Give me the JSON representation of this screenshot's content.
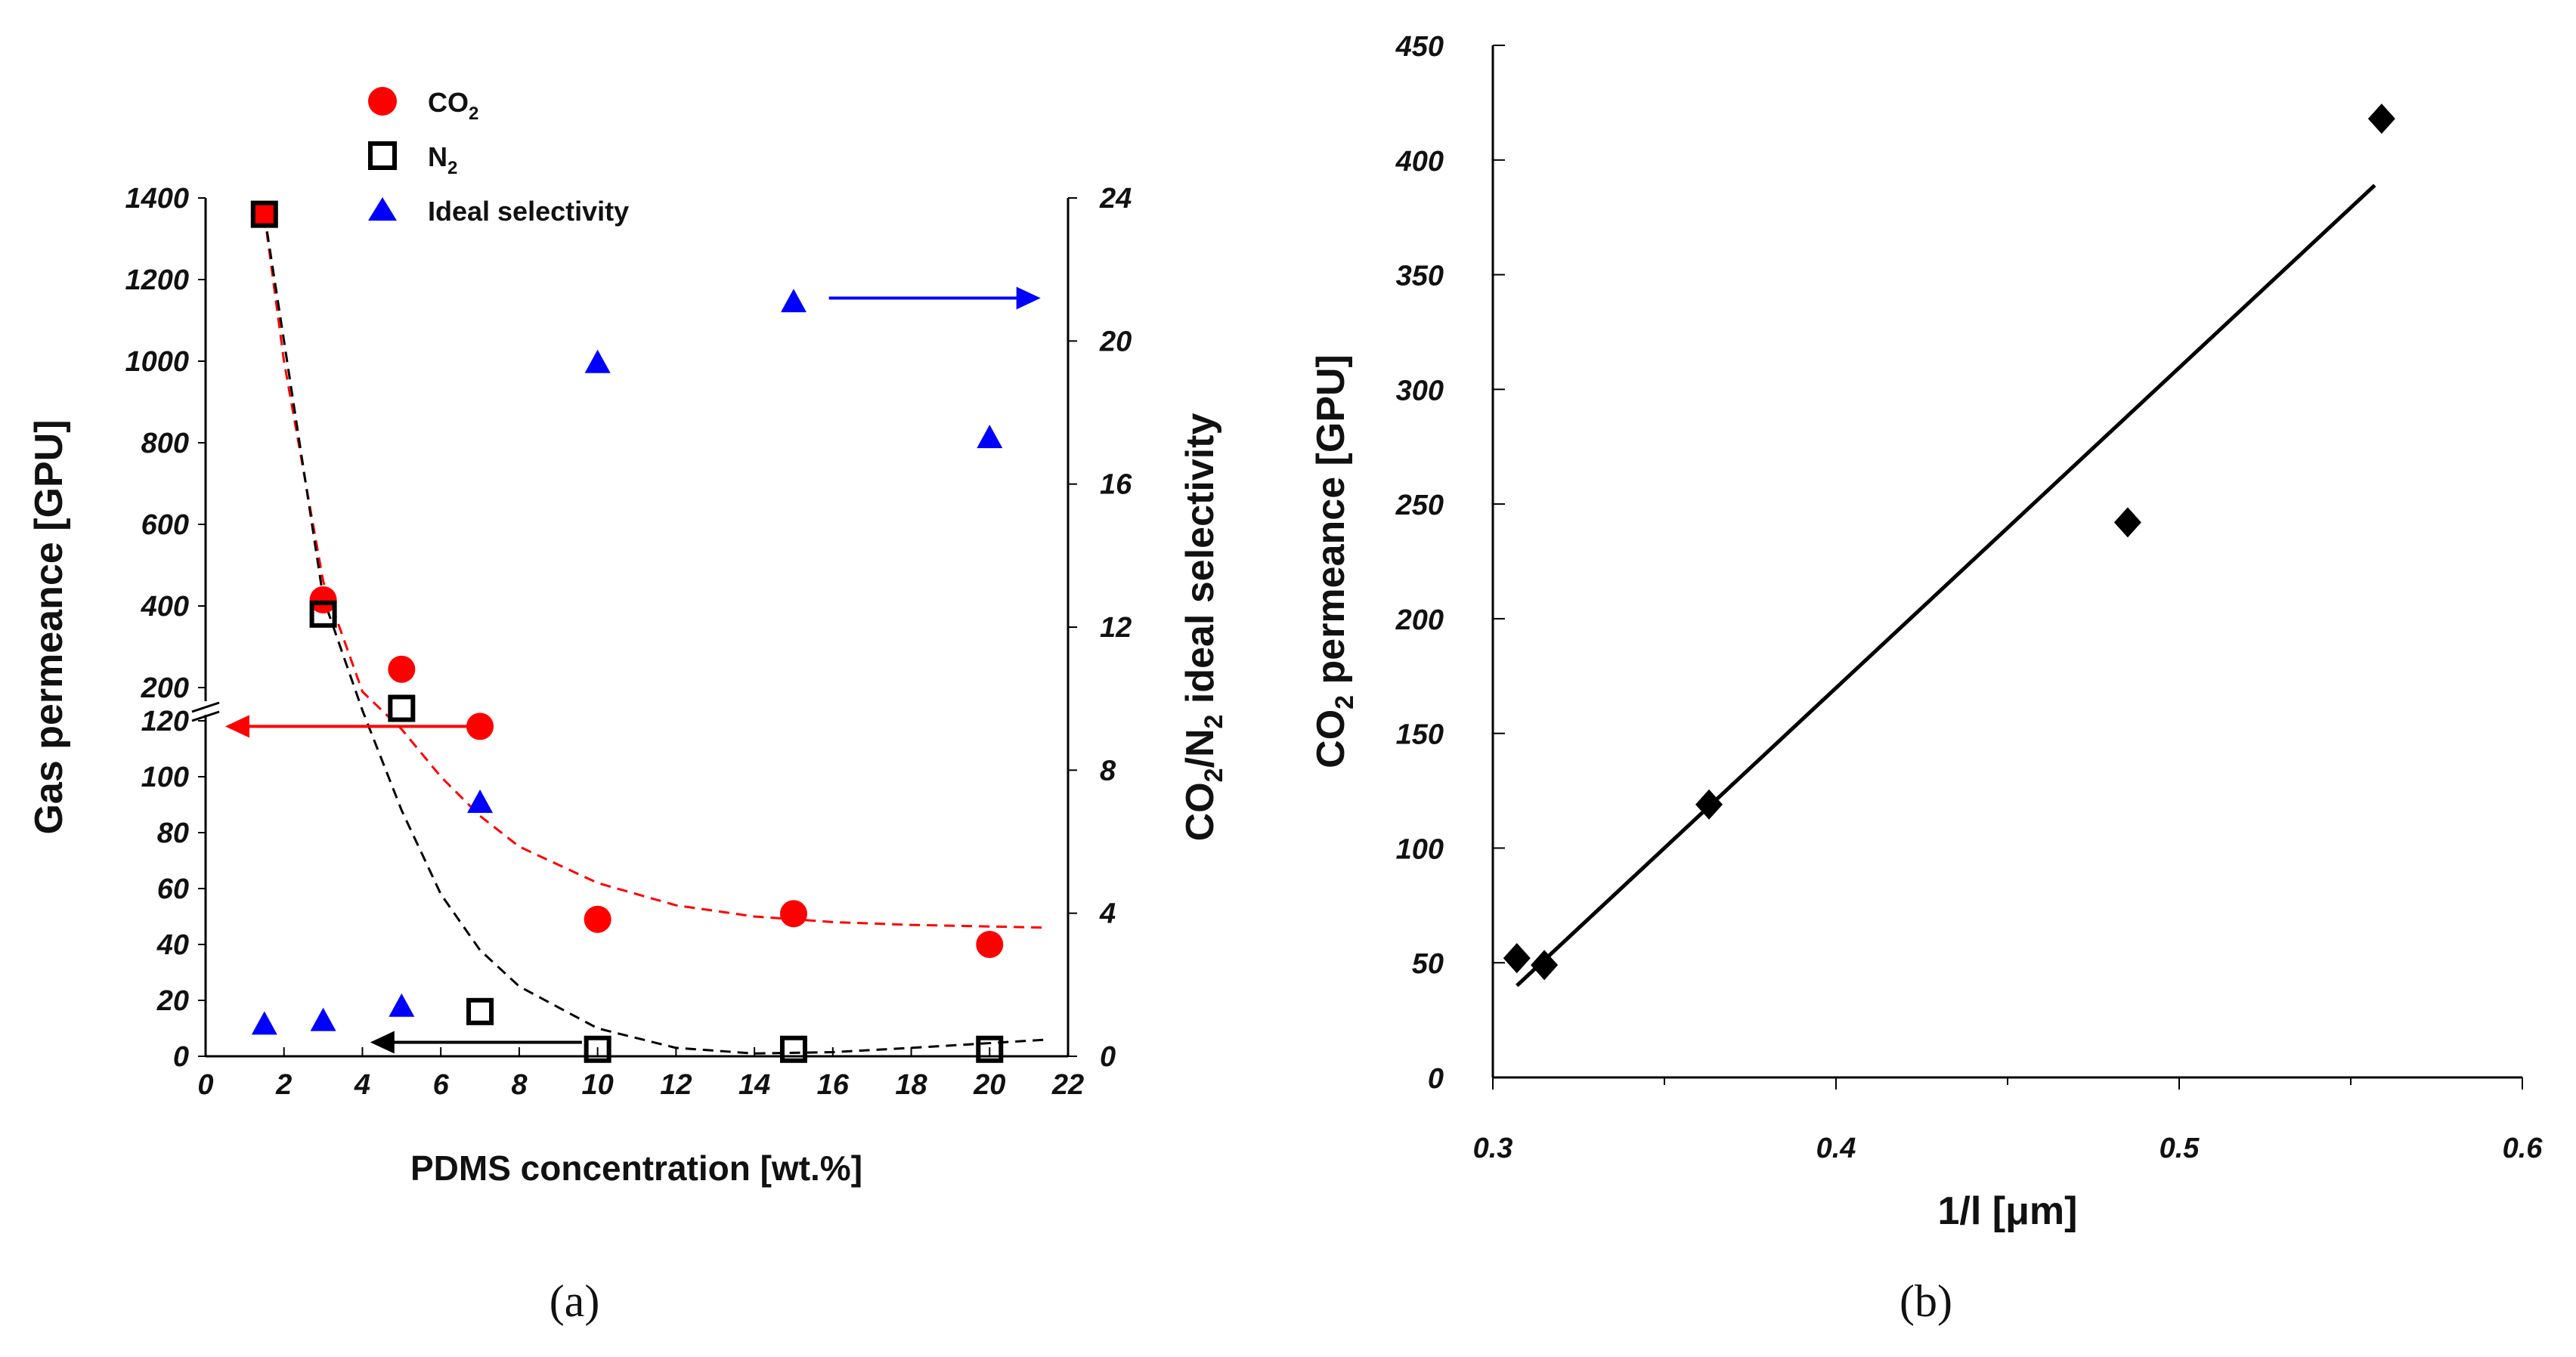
{
  "chart_data": [
    {
      "panel": "(a)",
      "type": "scatter",
      "xlabel": "PDMS concentration [wt.%]",
      "ylabel": "Gas permeance [GPU]",
      "y2label": "CO2/N2 ideal selectivity",
      "xlim": [
        0,
        22
      ],
      "xticks": [
        "0",
        "2",
        "4",
        "6",
        "8",
        "10",
        "12",
        "14",
        "16",
        "18",
        "20",
        "22"
      ],
      "ylim_lower": [
        0,
        120
      ],
      "yticks_lower": [
        "0",
        "20",
        "40",
        "60",
        "80",
        "100",
        "120"
      ],
      "ylim_upper": [
        200,
        1400
      ],
      "yticks_upper": [
        "200",
        "400",
        "600",
        "800",
        "1000",
        "1200",
        "1400"
      ],
      "y2lim": [
        0,
        24
      ],
      "y2ticks": [
        "0",
        "4",
        "8",
        "12",
        "16",
        "20",
        "24"
      ],
      "legend": [
        "CO2",
        "N2",
        "Ideal selectivity"
      ],
      "series": [
        {
          "name": "CO2",
          "marker": "circle",
          "color": "#ff0000",
          "axis": "left",
          "x": [
            1.5,
            3,
            5,
            7,
            10,
            15,
            20
          ],
          "y": [
            1360,
            415,
            245,
            118,
            49,
            51,
            40
          ]
        },
        {
          "name": "N2",
          "marker": "open-square",
          "color": "#000000",
          "axis": "left",
          "x": [
            1.5,
            3,
            5,
            7,
            10,
            15,
            20
          ],
          "y": [
            1360,
            380,
            150,
            16,
            2.5,
            2.5,
            2.5
          ]
        },
        {
          "name": "Ideal selectivity",
          "marker": "triangle",
          "color": "#0000ff",
          "axis": "right",
          "x": [
            1.5,
            3,
            5,
            7,
            10,
            15,
            20
          ],
          "y": [
            0.9,
            1.0,
            1.4,
            7.1,
            19.4,
            21.1,
            17.3
          ]
        }
      ],
      "fits": [
        {
          "name": "CO2 fit",
          "style": "dashed",
          "color": "#ff0000",
          "x": [
            1.5,
            2,
            3,
            4,
            5,
            6,
            7,
            8,
            10,
            12,
            14,
            16,
            18,
            21.5
          ],
          "y": [
            1360,
            1000,
            460,
            190,
            117,
            100,
            86,
            75,
            62,
            54,
            50,
            48,
            47,
            46
          ]
        },
        {
          "name": "N2 fit",
          "style": "dashed",
          "color": "#000000",
          "x": [
            1.5,
            2,
            3,
            4,
            5,
            6,
            7,
            8,
            10,
            12,
            14,
            16,
            18,
            21.5
          ],
          "y": [
            1360,
            1050,
            420,
            145,
            88,
            58,
            38,
            25,
            10,
            3,
            1,
            1.5,
            3,
            6
          ]
        }
      ],
      "arrows": [
        {
          "color": "#ff0000",
          "from": [
            6.7,
            118
          ],
          "to": [
            0.5,
            118
          ],
          "axis": "left"
        },
        {
          "color": "#000000",
          "from": [
            9.6,
            5
          ],
          "to": [
            4.2,
            5
          ],
          "axis": "left"
        },
        {
          "color": "#0000ff",
          "from": [
            15.9,
            21.2
          ],
          "to": [
            21.3,
            21.2
          ],
          "axis": "right"
        }
      ]
    },
    {
      "panel": "(b)",
      "type": "scatter",
      "xlabel": "1/l [μm]",
      "ylabel": "CO2 permeance [GPU]",
      "xlim": [
        0.3,
        0.6
      ],
      "xticks": [
        "0.3",
        "0.4",
        "0.5",
        "0.6"
      ],
      "ylim": [
        0,
        450
      ],
      "yticks": [
        "0",
        "50",
        "100",
        "150",
        "200",
        "250",
        "300",
        "350",
        "400",
        "450"
      ],
      "series": [
        {
          "name": "CO2 permeance",
          "marker": "diamond",
          "color": "#000000",
          "x": [
            0.307,
            0.315,
            0.363,
            0.485,
            0.559
          ],
          "y": [
            52,
            49,
            119,
            242,
            418
          ]
        }
      ],
      "fit": {
        "x": [
          0.307,
          0.557
        ],
        "y": [
          40,
          389
        ]
      }
    }
  ]
}
